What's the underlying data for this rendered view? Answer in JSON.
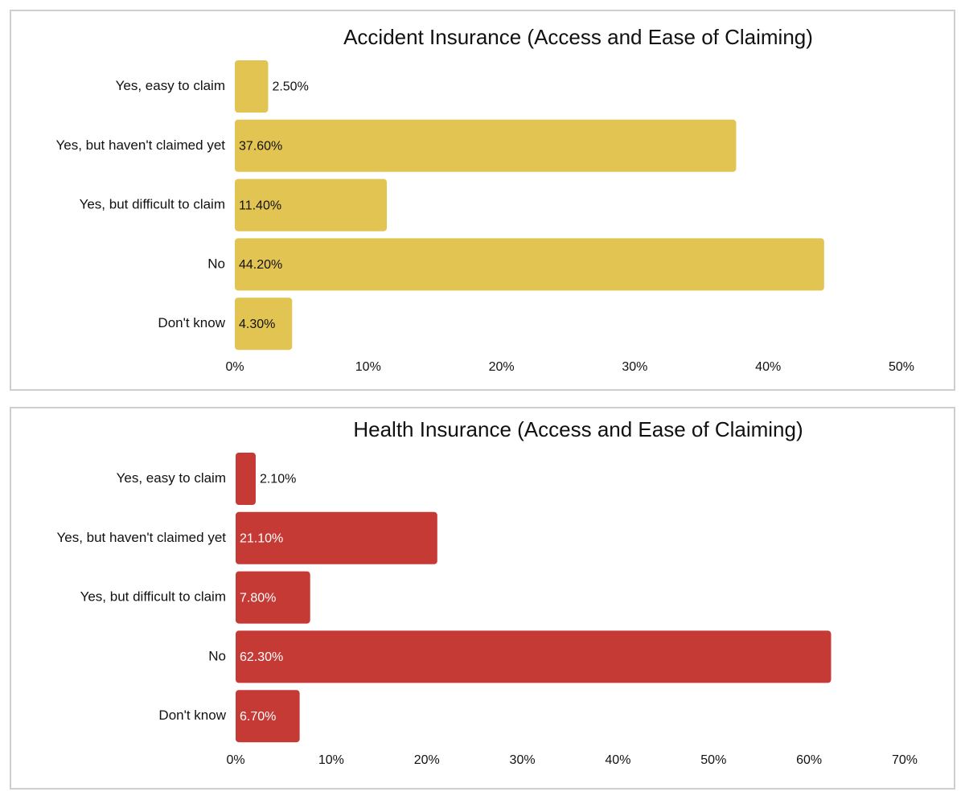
{
  "chart_data": [
    {
      "type": "bar",
      "orientation": "horizontal",
      "title": "Accident Insurance (Access and Ease of Claiming)",
      "categories": [
        "Yes, easy to claim",
        "Yes, but haven't claimed yet",
        "Yes, but difficult to claim",
        "No",
        "Don't know"
      ],
      "values": [
        2.5,
        37.6,
        11.4,
        44.2,
        4.3
      ],
      "data_labels": [
        "2.50%",
        "37.60%",
        "11.40%",
        "44.20%",
        "4.30%"
      ],
      "xlim": [
        0,
        50
      ],
      "x_ticks": [
        0,
        10,
        20,
        30,
        40,
        50
      ],
      "x_tick_labels": [
        "0%",
        "10%",
        "20%",
        "30%",
        "40%",
        "50%"
      ],
      "xlabel": "",
      "ylabel": "",
      "grid": false,
      "bar_color": "#E2C452",
      "label_color": "#111111"
    },
    {
      "type": "bar",
      "orientation": "horizontal",
      "title": "Health Insurance (Access and Ease of Claiming)",
      "categories": [
        "Yes, easy to claim",
        "Yes, but haven't claimed yet",
        "Yes, but difficult to claim",
        "No",
        "Don't know"
      ],
      "values": [
        2.1,
        21.1,
        7.8,
        62.3,
        6.7
      ],
      "data_labels": [
        "2.10%",
        "21.10%",
        "7.80%",
        "62.30%",
        "6.70%"
      ],
      "xlim": [
        0,
        70
      ],
      "x_ticks": [
        0,
        10,
        20,
        30,
        40,
        50,
        60,
        70
      ],
      "x_tick_labels": [
        "0%",
        "10%",
        "20%",
        "30%",
        "40%",
        "50%",
        "60%",
        "70%"
      ],
      "xlabel": "",
      "ylabel": "",
      "grid": false,
      "bar_color": "#C63A36",
      "label_color": "#ffffff"
    }
  ]
}
